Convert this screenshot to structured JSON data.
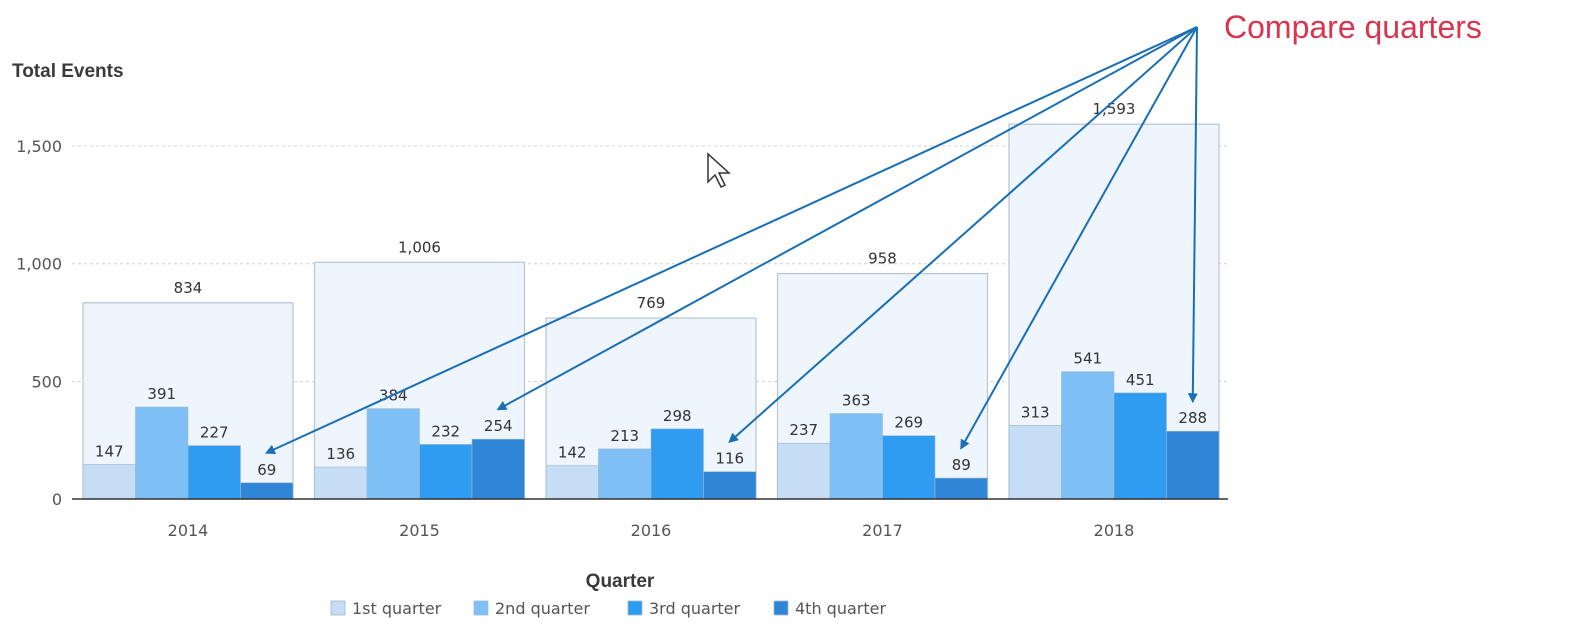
{
  "chart_data": {
    "type": "bar",
    "ylabel": "Total Events",
    "xlabel": "Quarter",
    "categories": [
      "2014",
      "2015",
      "2016",
      "2017",
      "2018"
    ],
    "totals": [
      834,
      1006,
      769,
      958,
      1593
    ],
    "total_labels": [
      "834",
      "1,006",
      "769",
      "958",
      "1,593"
    ],
    "series": [
      {
        "name": "1st quarter",
        "values": [
          147,
          136,
          142,
          237,
          313
        ],
        "color": "#c6def5"
      },
      {
        "name": "2nd quarter",
        "values": [
          391,
          384,
          213,
          363,
          541
        ],
        "color": "#7ec0f5"
      },
      {
        "name": "3rd quarter",
        "values": [
          227,
          232,
          298,
          269,
          451
        ],
        "color": "#2f9cf2"
      },
      {
        "name": "4th quarter",
        "values": [
          69,
          254,
          116,
          89,
          288
        ],
        "color": "#2f86d6"
      }
    ],
    "ylim": [
      0,
      1600
    ],
    "yticks": [
      0,
      500,
      1000,
      1500
    ],
    "ytick_labels": [
      "0",
      "500",
      "1,000",
      "1,500"
    ],
    "grid": true,
    "legend": "bottom",
    "annotation": {
      "text": "Compare quarters",
      "targets": [
        "2014",
        "2015",
        "2016",
        "2017",
        "2018"
      ],
      "series": "4th quarter",
      "color": "#d9354f",
      "arrow_color": "#1a6fb5"
    },
    "colors": {
      "total_fill": "#eef5fd",
      "total_stroke": "#b8c4d0",
      "grid": "#d0d0d0",
      "axis": "#333333"
    }
  }
}
